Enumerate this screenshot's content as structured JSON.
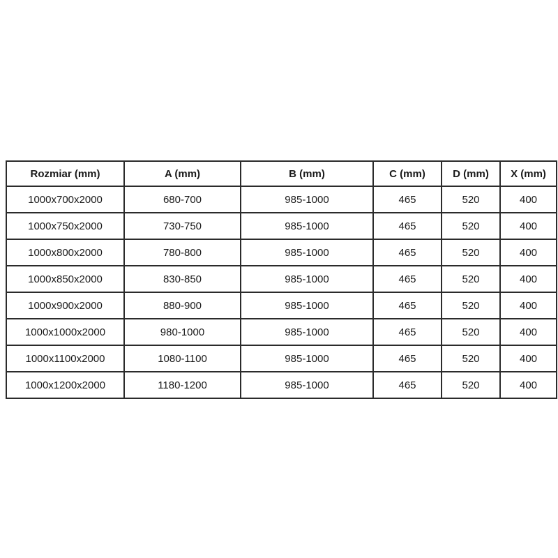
{
  "table": {
    "headers": [
      "Rozmiar (mm)",
      "A (mm)",
      "B (mm)",
      "C (mm)",
      "D (mm)",
      "X (mm)"
    ],
    "rows": [
      [
        "1000x700x2000",
        "680-700",
        "985-1000",
        "465",
        "520",
        "400"
      ],
      [
        "1000x750x2000",
        "730-750",
        "985-1000",
        "465",
        "520",
        "400"
      ],
      [
        "1000x800x2000",
        "780-800",
        "985-1000",
        "465",
        "520",
        "400"
      ],
      [
        "1000x850x2000",
        "830-850",
        "985-1000",
        "465",
        "520",
        "400"
      ],
      [
        "1000x900x2000",
        "880-900",
        "985-1000",
        "465",
        "520",
        "400"
      ],
      [
        "1000x1000x2000",
        "980-1000",
        "985-1000",
        "465",
        "520",
        "400"
      ],
      [
        "1000x1100x2000",
        "1080-1100",
        "985-1000",
        "465",
        "520",
        "400"
      ],
      [
        "1000x1200x2000",
        "1180-1200",
        "985-1000",
        "465",
        "520",
        "400"
      ]
    ],
    "colors": {
      "border": "#2b2b2b",
      "text": "#1a1a1a",
      "background": "#ffffff"
    }
  }
}
